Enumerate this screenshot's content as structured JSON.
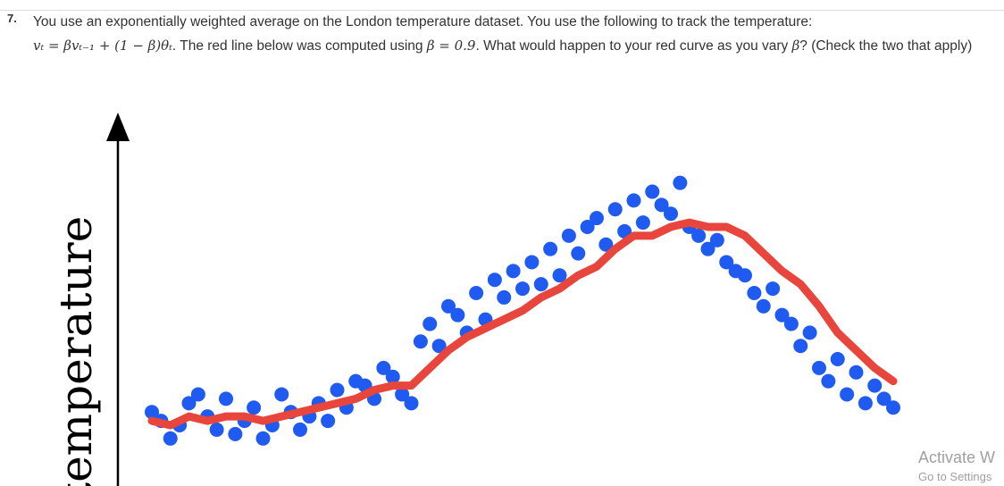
{
  "question": {
    "number": "7.",
    "text_part1": "You use an exponentially weighted average on the London temperature dataset. You use the following to track the temperature:",
    "formula": "vₜ = βvₜ₋₁ + (1 − β)θₜ",
    "text_part2": ". The red line below was computed using",
    "beta_value": "β = 0.9",
    "text_part3": ". What would happen to your red curve as you vary",
    "beta_symbol": "β",
    "text_part4": "? (Check the two that apply)"
  },
  "chart_data": {
    "type": "scatter",
    "ylabel": "temperature",
    "series": [
      {
        "name": "",
        "kind": "points",
        "color": "#1f5bf0",
        "x": [
          0,
          1,
          2,
          3,
          4,
          5,
          6,
          7,
          8,
          9,
          10,
          11,
          12,
          13,
          14,
          15,
          16,
          17,
          18,
          19,
          20,
          21,
          22,
          23,
          24,
          25,
          26,
          27,
          28,
          29,
          30,
          31,
          32,
          33,
          34,
          35,
          36,
          37,
          38,
          39,
          40,
          41,
          42,
          43,
          44,
          45,
          46,
          47,
          48,
          49,
          50,
          51,
          52,
          53,
          54,
          55,
          56,
          57,
          58,
          59,
          60,
          61,
          62,
          63,
          64,
          65,
          66,
          67,
          68,
          69,
          70,
          71,
          72,
          73,
          74,
          75,
          76,
          77,
          78,
          79,
          80
        ],
        "y": [
          18,
          16,
          12,
          15,
          20,
          22,
          17,
          14,
          21,
          13,
          16,
          19,
          12,
          15,
          22,
          18,
          14,
          17,
          20,
          16,
          23,
          19,
          25,
          24,
          21,
          28,
          26,
          22,
          20,
          34,
          38,
          33,
          42,
          40,
          36,
          45,
          39,
          48,
          44,
          50,
          46,
          52,
          47,
          55,
          49,
          58,
          54,
          60,
          62,
          56,
          64,
          59,
          66,
          61,
          68,
          65,
          63,
          70,
          60,
          58,
          55,
          57,
          52,
          50,
          49,
          45,
          42,
          46,
          40,
          38,
          33,
          36,
          28,
          25,
          30,
          22,
          27,
          20,
          24,
          21,
          19
        ]
      },
      {
        "name": "",
        "kind": "line",
        "color": "#e8453c",
        "x": [
          0,
          2,
          4,
          6,
          8,
          10,
          12,
          14,
          16,
          18,
          20,
          22,
          24,
          26,
          28,
          30,
          32,
          34,
          36,
          38,
          40,
          42,
          44,
          46,
          48,
          50,
          52,
          54,
          56,
          58,
          60,
          62,
          64,
          66,
          68,
          70,
          72,
          74,
          76,
          78,
          80
        ],
        "y": [
          16,
          15,
          17,
          16,
          17,
          17,
          16,
          17,
          18,
          19,
          20,
          21,
          23,
          24,
          24,
          28,
          32,
          35,
          37,
          39,
          41,
          44,
          46,
          49,
          51,
          55,
          58,
          58,
          60,
          61,
          60,
          60,
          58,
          54,
          50,
          47,
          42,
          36,
          32,
          28,
          25
        ]
      }
    ]
  },
  "watermark": {
    "line1": "Activate W",
    "line2": "Go to Settings"
  }
}
